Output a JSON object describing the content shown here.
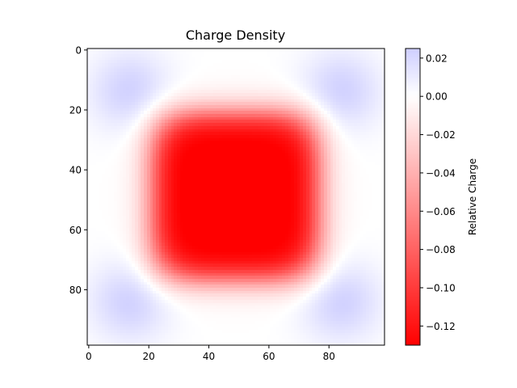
{
  "chart_data": {
    "type": "heatmap",
    "title": "Charge Density",
    "xlabel": "",
    "ylabel": "",
    "grid": false,
    "x_ticks": [
      0,
      20,
      40,
      60,
      80
    ],
    "y_ticks": [
      0,
      20,
      40,
      60,
      80
    ],
    "xlim": [
      -0.5,
      98.5
    ],
    "ylim": [
      98.5,
      -0.5
    ],
    "y_axis_inverted": true,
    "grid_size": [
      99,
      99
    ],
    "field_description": "Central square-ish negative region centered near (49,49) reaching about -0.13; four positive blue lobes near the corners centered near (14,14), (84,14), (14,84), (84,84) reaching about +0.025; near-zero values elsewhere.",
    "colorbar": {
      "label": "Relative Charge",
      "vmin": -0.13,
      "vmax": 0.025,
      "ticks": [
        0.02,
        0.0,
        -0.02,
        -0.04,
        -0.06,
        -0.08,
        -0.1,
        -0.12
      ],
      "tick_labels": [
        "0.02",
        "0.00",
        "−0.02",
        "−0.04",
        "−0.06",
        "−0.08",
        "−0.10",
        "−0.12"
      ],
      "colormap": "bwr_r",
      "colors": {
        "negative": "#ff0000",
        "zero": "#ffffff",
        "positive": "#0000ff"
      }
    }
  }
}
